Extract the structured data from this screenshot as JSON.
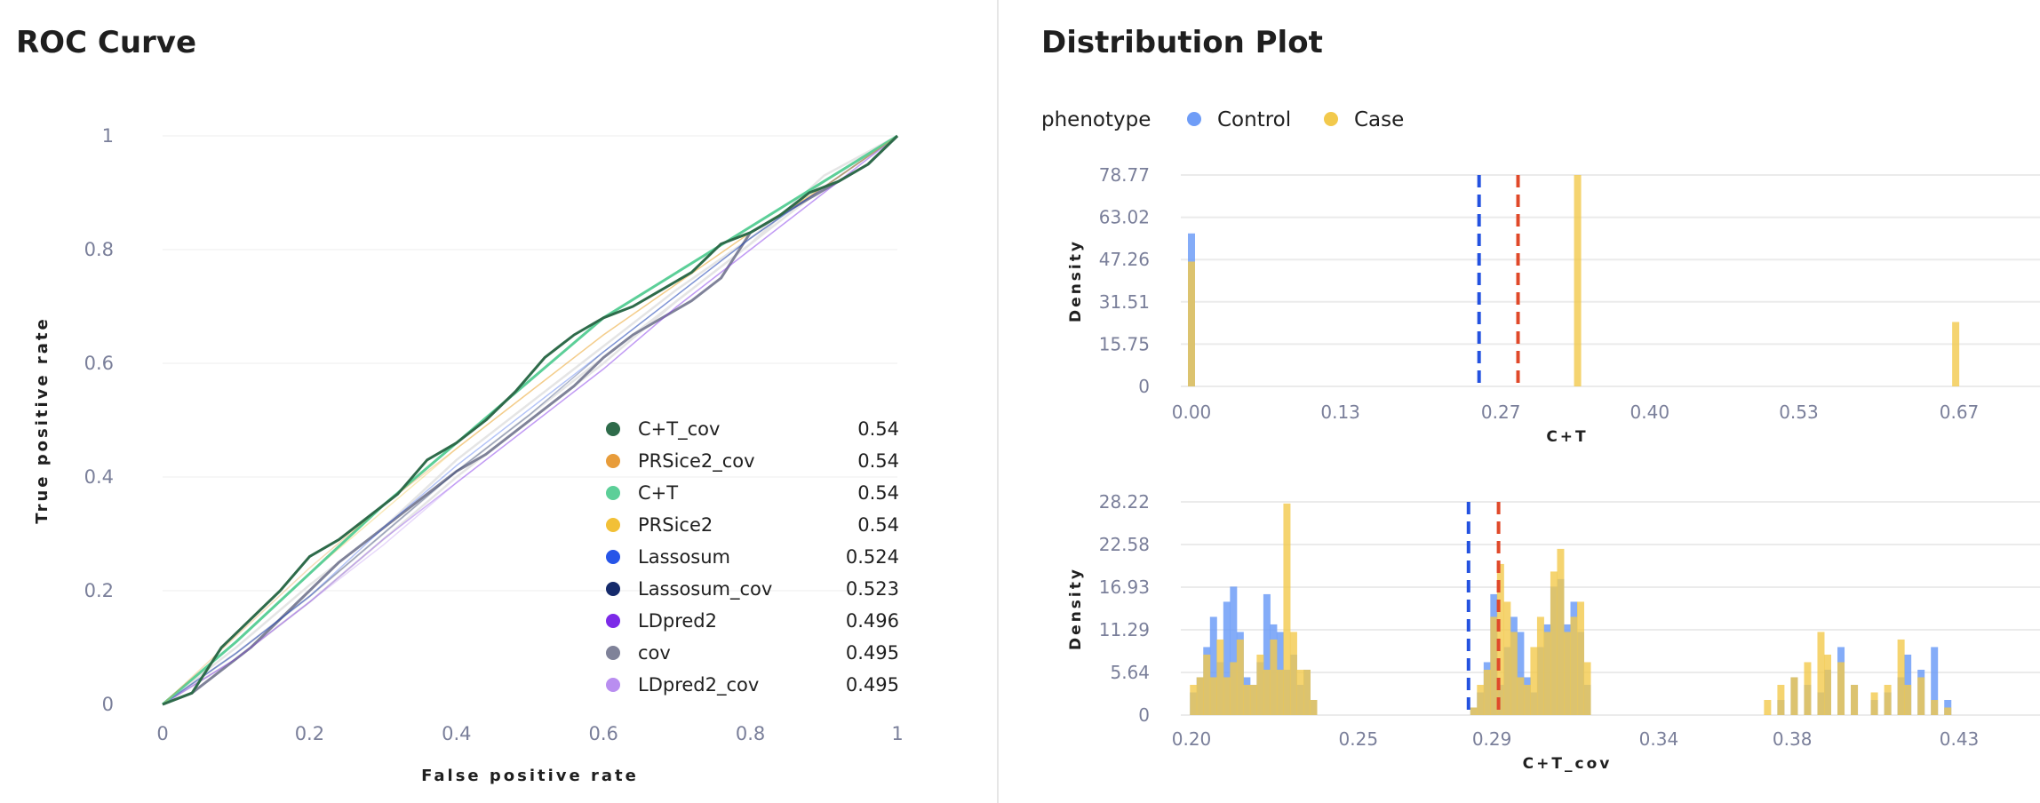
{
  "roc": {
    "title": "ROC Curve",
    "chart_data": {
      "type": "line",
      "title": "ROC Curve",
      "xlabel": "False positive rate",
      "ylabel": "True positive rate",
      "xlim": [
        0,
        1
      ],
      "ylim": [
        0,
        1
      ],
      "x_ticks": [
        "0",
        "0.2",
        "0.4",
        "0.6",
        "0.8",
        "1"
      ],
      "y_ticks": [
        "0",
        "0.2",
        "0.4",
        "0.6",
        "0.8",
        "1"
      ],
      "grid": "horizontal",
      "legend_position": "bottom-right",
      "series": [
        {
          "name": "C+T_cov",
          "auc": "0.54",
          "color": "#2e6b4a",
          "x": [
            0,
            0.04,
            0.08,
            0.12,
            0.16,
            0.2,
            0.24,
            0.28,
            0.32,
            0.36,
            0.4,
            0.44,
            0.48,
            0.52,
            0.56,
            0.6,
            0.64,
            0.68,
            0.72,
            0.76,
            0.8,
            0.84,
            0.88,
            0.92,
            0.96,
            1.0
          ],
          "y": [
            0,
            0.02,
            0.1,
            0.15,
            0.2,
            0.26,
            0.29,
            0.33,
            0.37,
            0.43,
            0.46,
            0.5,
            0.55,
            0.61,
            0.65,
            0.68,
            0.7,
            0.73,
            0.76,
            0.81,
            0.83,
            0.86,
            0.9,
            0.92,
            0.95,
            1.0
          ]
        },
        {
          "name": "PRSice2_cov",
          "auc": "0.54",
          "color": "#e89c3a",
          "x": [
            0,
            0.1,
            0.2,
            0.3,
            0.4,
            0.5,
            0.6,
            0.7,
            0.8,
            0.9,
            1.0
          ],
          "y": [
            0,
            0.12,
            0.24,
            0.35,
            0.45,
            0.55,
            0.65,
            0.74,
            0.83,
            0.91,
            1.0
          ]
        },
        {
          "name": "C+T",
          "auc": "0.54",
          "color": "#5ccf98",
          "x": [
            0,
            0.1,
            0.2,
            0.3,
            0.4,
            0.5,
            0.6,
            0.7,
            0.8,
            0.9,
            1.0
          ],
          "y": [
            0,
            0.11,
            0.23,
            0.35,
            0.46,
            0.57,
            0.68,
            0.76,
            0.84,
            0.92,
            1.0
          ]
        },
        {
          "name": "PRSice2",
          "auc": "0.54",
          "color": "#f2c037",
          "x": [
            0,
            0.1,
            0.2,
            0.3,
            0.4,
            0.5,
            0.6,
            0.7,
            0.8,
            0.9,
            1.0
          ],
          "y": [
            0,
            0.11,
            0.23,
            0.34,
            0.45,
            0.55,
            0.65,
            0.74,
            0.83,
            0.91,
            1.0
          ]
        },
        {
          "name": "Lassosum",
          "auc": "0.524",
          "color": "#2755e8",
          "x": [
            0,
            0.1,
            0.2,
            0.3,
            0.4,
            0.5,
            0.6,
            0.7,
            0.8,
            0.9,
            1.0
          ],
          "y": [
            0,
            0.09,
            0.19,
            0.31,
            0.42,
            0.52,
            0.62,
            0.72,
            0.82,
            0.91,
            1.0
          ]
        },
        {
          "name": "Lassosum_cov",
          "auc": "0.523",
          "color": "#152a6b",
          "x": [
            0,
            0.1,
            0.2,
            0.3,
            0.4,
            0.5,
            0.6,
            0.7,
            0.8,
            0.9,
            1.0
          ],
          "y": [
            0,
            0.09,
            0.19,
            0.3,
            0.41,
            0.51,
            0.62,
            0.72,
            0.82,
            0.91,
            1.0
          ]
        },
        {
          "name": "LDpred2",
          "auc": "0.496",
          "color": "#7c2ae8",
          "x": [
            0,
            0.1,
            0.2,
            0.3,
            0.4,
            0.5,
            0.6,
            0.7,
            0.8,
            0.9,
            1.0
          ],
          "y": [
            0,
            0.08,
            0.18,
            0.29,
            0.39,
            0.49,
            0.59,
            0.7,
            0.8,
            0.9,
            1.0
          ]
        },
        {
          "name": "cov",
          "auc": "0.495",
          "color": "#7f8299",
          "x": [
            0,
            0.04,
            0.08,
            0.12,
            0.16,
            0.2,
            0.24,
            0.28,
            0.32,
            0.36,
            0.4,
            0.44,
            0.48,
            0.52,
            0.56,
            0.6,
            0.64,
            0.68,
            0.72,
            0.76,
            0.8,
            0.84,
            0.88,
            0.92,
            0.96,
            1.0
          ],
          "y": [
            0,
            0.02,
            0.06,
            0.1,
            0.15,
            0.2,
            0.25,
            0.29,
            0.33,
            0.37,
            0.41,
            0.44,
            0.48,
            0.52,
            0.56,
            0.61,
            0.65,
            0.68,
            0.71,
            0.75,
            0.83,
            0.86,
            0.89,
            0.92,
            0.95,
            1.0
          ]
        },
        {
          "name": "LDpred2_cov",
          "auc": "0.495",
          "color": "#b98ef0",
          "x": [
            0,
            0.1,
            0.2,
            0.3,
            0.4,
            0.5,
            0.6,
            0.7,
            0.8,
            0.9,
            1.0
          ],
          "y": [
            0,
            0.08,
            0.18,
            0.28,
            0.39,
            0.49,
            0.59,
            0.7,
            0.8,
            0.9,
            1.0
          ]
        }
      ]
    }
  },
  "distribution": {
    "title": "Distribution Plot",
    "legend": {
      "title": "phenotype",
      "items": [
        {
          "label": "Control",
          "color": "#6f9df7"
        },
        {
          "label": "Case",
          "color": "#f2c94c"
        }
      ]
    },
    "chart_data": [
      {
        "type": "bar",
        "title": "",
        "xlabel": "C+T",
        "ylabel": "Density",
        "xlim": [
          0,
          0.67
        ],
        "ylim": [
          0,
          78.77
        ],
        "x_ticks": [
          "0.00",
          "0.13",
          "0.27",
          "0.40",
          "0.53",
          "0.67"
        ],
        "y_ticks": [
          "0",
          "15.75",
          "31.51",
          "47.26",
          "63.02",
          "78.77"
        ],
        "vlines": [
          {
            "x": 0.251,
            "color": "#2452e0"
          },
          {
            "x": 0.285,
            "color": "#e0492a"
          }
        ],
        "series": [
          {
            "name": "Control",
            "x": [
              0.0,
              0.337,
              0.667
            ],
            "values": [
              57.0,
              0,
              0
            ]
          },
          {
            "name": "Case",
            "x": [
              0.0,
              0.337,
              0.667
            ],
            "values": [
              46.5,
              78.77,
              24.0
            ]
          }
        ]
      },
      {
        "type": "bar",
        "title": "",
        "xlabel": "C+T_cov",
        "ylabel": "Density",
        "xlim": [
          0.2,
          0.43
        ],
        "ylim": [
          0,
          28.22
        ],
        "x_ticks": [
          "0.20",
          "0.25",
          "0.29",
          "0.34",
          "0.38",
          "0.43"
        ],
        "y_ticks": [
          "0",
          "5.64",
          "11.29",
          "16.93",
          "22.58",
          "28.22"
        ],
        "vlines": [
          {
            "x": 0.283,
            "color": "#2452e0"
          },
          {
            "x": 0.292,
            "color": "#e0492a"
          }
        ],
        "series": [
          {
            "name": "Control",
            "x": [
              0.2006,
              0.2026,
              0.2046,
              0.2066,
              0.2086,
              0.2106,
              0.2126,
              0.2146,
              0.2166,
              0.2186,
              0.2206,
              0.2226,
              0.2246,
              0.2266,
              0.2286,
              0.2306,
              0.2326,
              0.2346,
              0.2366,
              0.2846,
              0.2866,
              0.2886,
              0.2906,
              0.2926,
              0.2946,
              0.2966,
              0.2986,
              0.3006,
              0.3026,
              0.3046,
              0.3066,
              0.3086,
              0.3106,
              0.3126,
              0.3146,
              0.3166,
              0.3186,
              0.3726,
              0.3766,
              0.3806,
              0.3846,
              0.3886,
              0.3906,
              0.3946,
              0.3986,
              0.4046,
              0.4086,
              0.4126,
              0.4146,
              0.4186,
              0.4226,
              0.4266
            ],
            "values": [
              3,
              5,
              9,
              13,
              7,
              15,
              17,
              11,
              5,
              4,
              7,
              16,
              12,
              11,
              6,
              8,
              4,
              6,
              2,
              1,
              3,
              7,
              16,
              4,
              9,
              13,
              11,
              5,
              3,
              9,
              12,
              17,
              18,
              12,
              15,
              11,
              4,
              0,
              2,
              5,
              4,
              3,
              6,
              9,
              4,
              2,
              3,
              5,
              8,
              6,
              9,
              2
            ]
          },
          {
            "name": "Case",
            "x": [
              0.2006,
              0.2026,
              0.2046,
              0.2066,
              0.2086,
              0.2106,
              0.2126,
              0.2146,
              0.2166,
              0.2186,
              0.2206,
              0.2226,
              0.2246,
              0.2266,
              0.2286,
              0.2306,
              0.2326,
              0.2346,
              0.2366,
              0.2846,
              0.2866,
              0.2886,
              0.2906,
              0.2926,
              0.2946,
              0.2966,
              0.2986,
              0.3006,
              0.3026,
              0.3046,
              0.3066,
              0.3086,
              0.3106,
              0.3126,
              0.3146,
              0.3166,
              0.3186,
              0.3726,
              0.3766,
              0.3806,
              0.3846,
              0.3886,
              0.3906,
              0.3946,
              0.3986,
              0.4046,
              0.4086,
              0.4126,
              0.4146,
              0.4186,
              0.4226,
              0.4266
            ],
            "values": [
              4,
              5,
              8,
              5,
              10,
              5,
              7,
              10,
              4,
              4,
              8,
              6,
              10,
              6,
              28,
              11,
              6,
              6,
              2,
              1,
              4,
              6,
              13,
              20,
              15,
              11,
              5,
              4,
              9,
              13,
              11,
              19,
              22,
              11,
              13,
              15,
              7,
              2,
              4,
              5,
              7,
              11,
              8,
              7,
              4,
              3,
              4,
              10,
              4,
              5,
              2,
              1
            ]
          }
        ]
      }
    ]
  }
}
